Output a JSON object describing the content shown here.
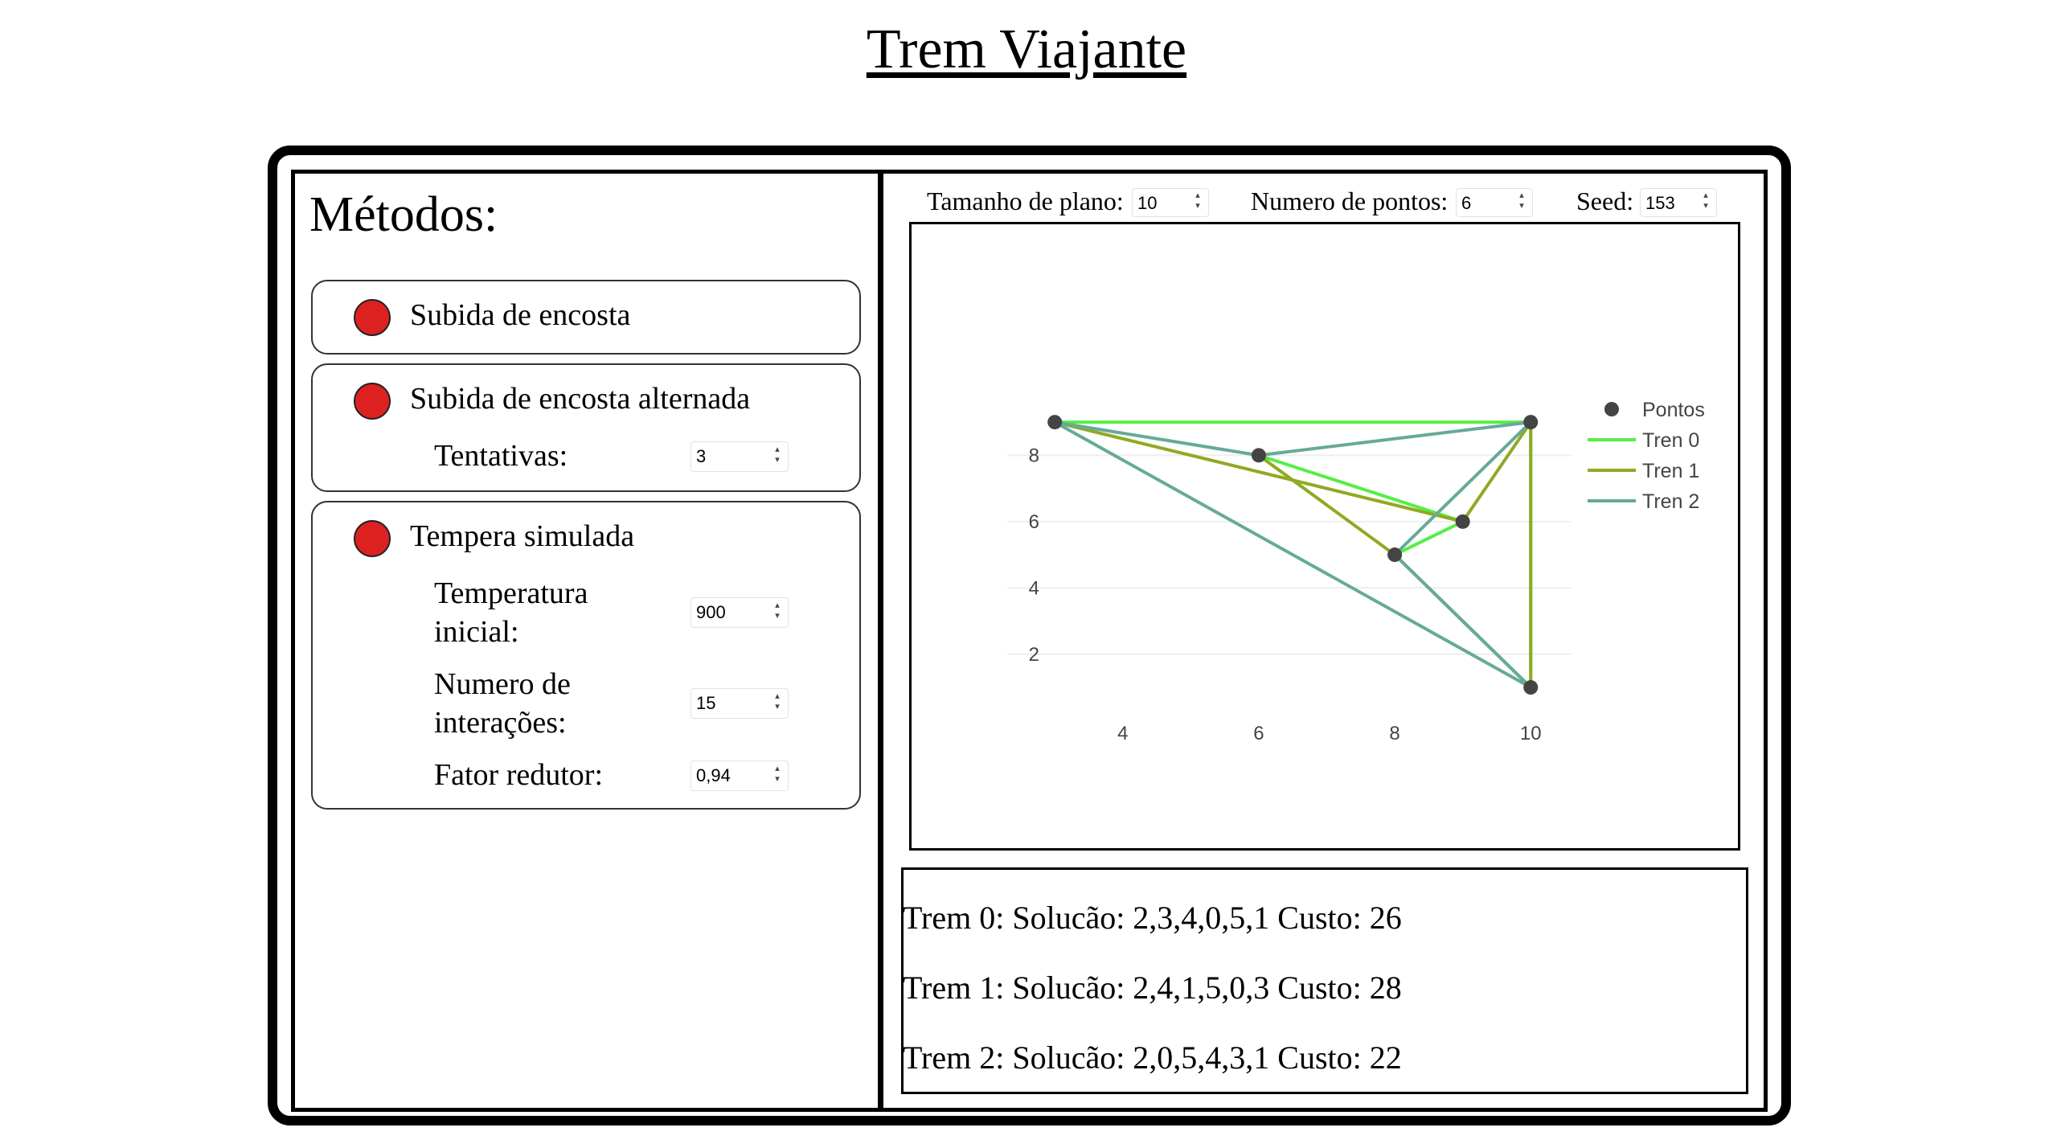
{
  "page": {
    "title": "Trem Viajante"
  },
  "methods": {
    "title": "Métodos:",
    "hill_climbing": {
      "label": "Subida de encosta",
      "color": "#dd2121"
    },
    "hill_climbing_alt": {
      "label": "Subida de encosta alternada",
      "color": "#dd2121",
      "tentativas_label": "Tentativas:",
      "tentativas_value": "3"
    },
    "simulated_annealing": {
      "label": "Tempera simulada",
      "color": "#dd2121",
      "temp_label": "Temperatura inicial:",
      "temp_value": "900",
      "iter_label": "Numero de interações:",
      "iter_value": "15",
      "factor_label": "Fator redutor:",
      "factor_value": "0,94"
    }
  },
  "controls": {
    "plane_size_label": "Tamanho de plano:",
    "plane_size_value": "10",
    "points_label": "Numero de pontos:",
    "points_value": "6",
    "seed_label": "Seed:",
    "seed_value": "153"
  },
  "chart_data": {
    "type": "line",
    "x_ticks": [
      4,
      6,
      8,
      10
    ],
    "y_ticks": [
      2,
      4,
      6,
      8
    ],
    "xlim": [
      2.3,
      10.6
    ],
    "ylim": [
      0.2,
      9.9
    ],
    "grid": "horizontal",
    "legend_position": "top-right",
    "points_series": {
      "name": "Pontos",
      "color": "#444444",
      "points": [
        [
          3,
          9
        ],
        [
          6,
          8
        ],
        [
          8,
          5
        ],
        [
          9,
          6
        ],
        [
          10,
          9
        ],
        [
          10,
          1
        ]
      ]
    },
    "series": [
      {
        "name": "Tren 0",
        "color": "#55ee44",
        "path": [
          [
            6,
            8
          ],
          [
            9,
            6
          ],
          [
            8,
            5
          ],
          [
            10,
            1
          ],
          [
            10,
            9
          ],
          [
            3,
            9
          ]
        ]
      },
      {
        "name": "Tren 1",
        "color": "#8faa22",
        "path": [
          [
            6,
            8
          ],
          [
            8,
            5
          ],
          [
            10,
            1
          ],
          [
            10,
            9
          ],
          [
            9,
            6
          ],
          [
            3,
            9
          ]
        ]
      },
      {
        "name": "Tren 2",
        "color": "#66aa99",
        "path": [
          [
            6,
            8
          ],
          [
            3,
            9
          ],
          [
            10,
            1
          ],
          [
            8,
            5
          ],
          [
            10,
            9
          ],
          [
            6,
            8
          ]
        ]
      }
    ]
  },
  "results": {
    "lines": [
      "Trem 0: Solucão: 2,3,4,0,5,1 Custo: 26",
      "Trem 1: Solucão: 2,4,1,5,0,3 Custo: 28",
      "Trem 2: Solucão: 2,0,5,4,3,1 Custo: 22"
    ]
  }
}
